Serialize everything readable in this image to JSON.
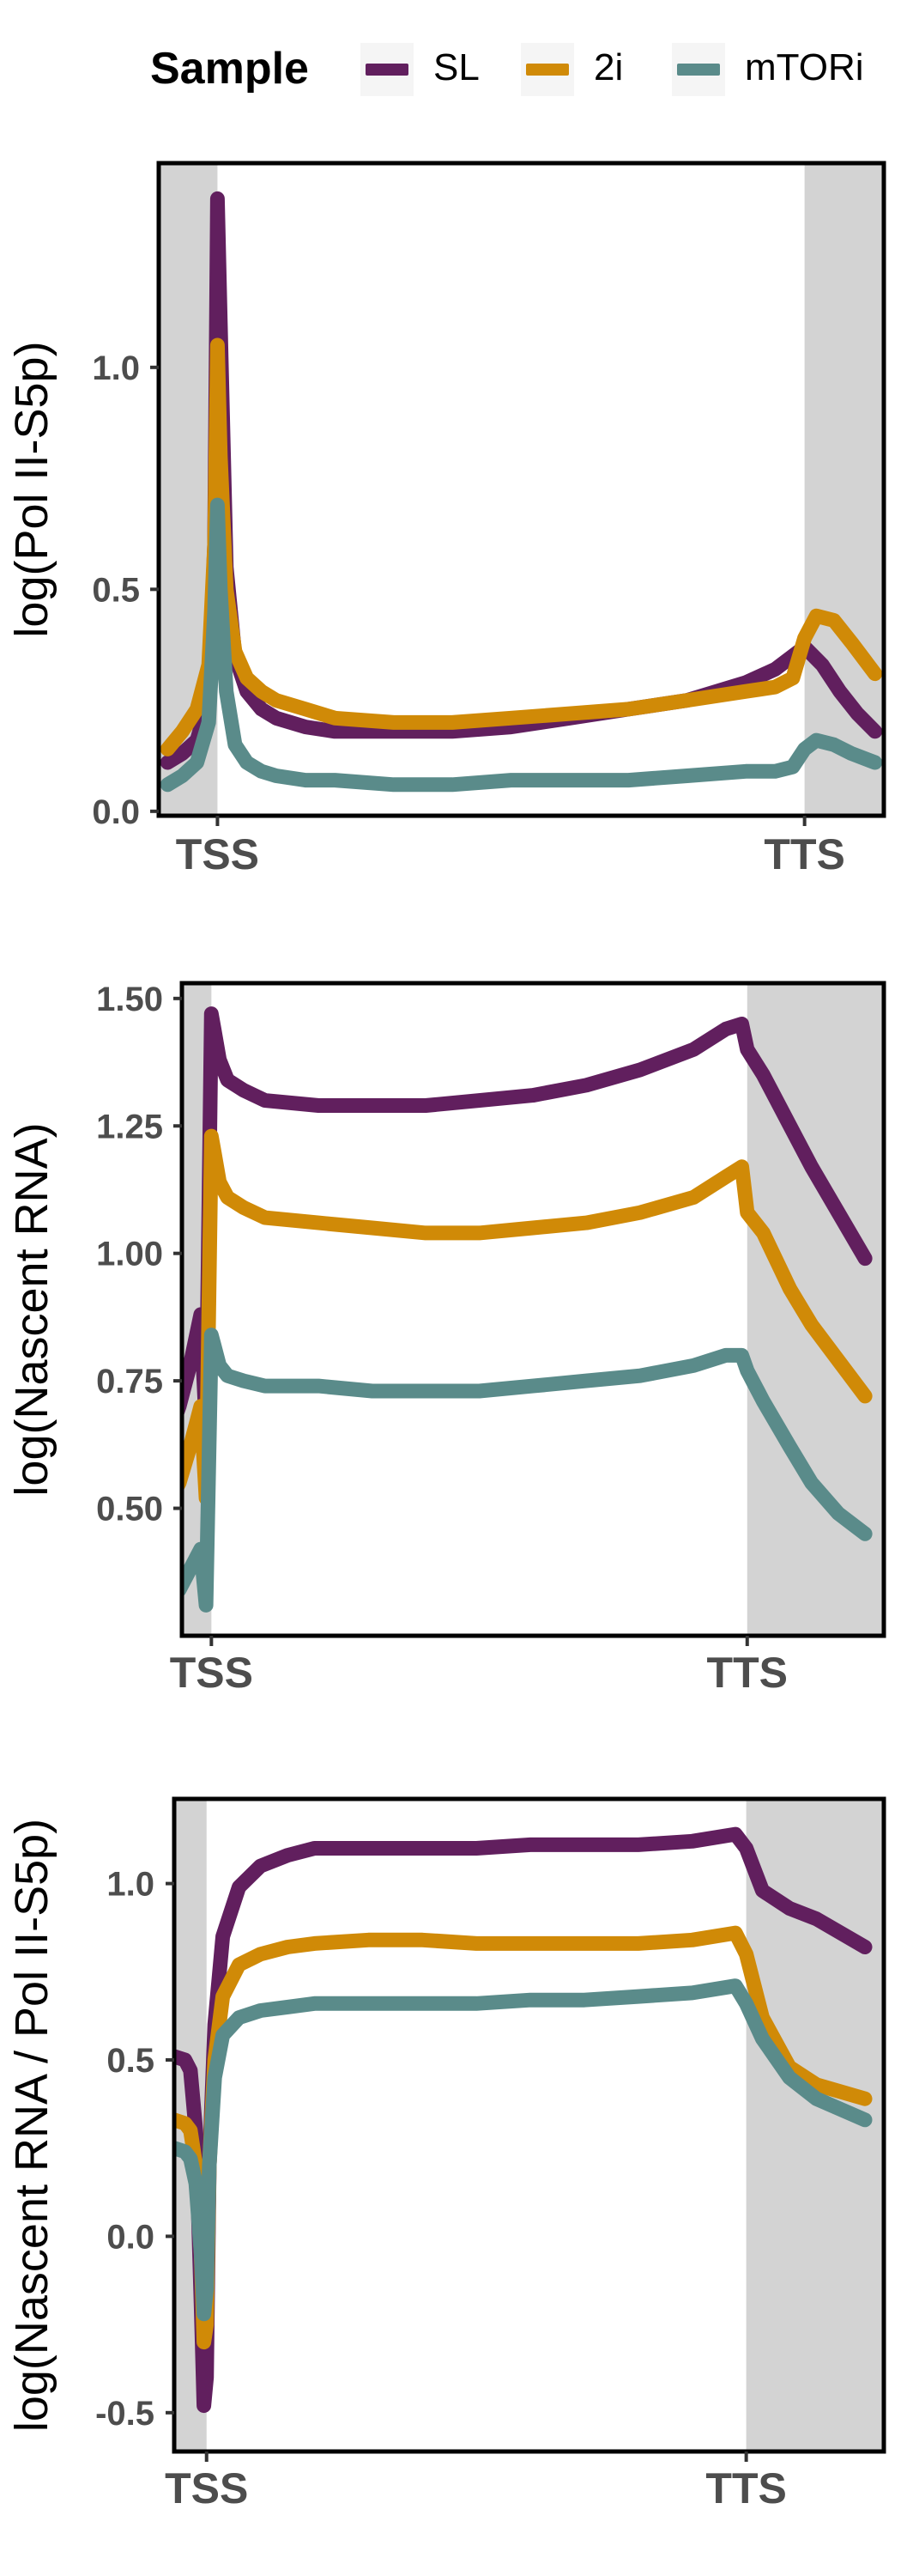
{
  "legend": {
    "title": "Sample",
    "items": [
      {
        "label": "SL",
        "color": "#611f5e"
      },
      {
        "label": "2i",
        "color": "#d08a07"
      },
      {
        "label": "mTORi",
        "color": "#5a8b8a"
      }
    ]
  },
  "chart_data": [
    {
      "type": "line",
      "ylabel": "log(Pol II-S5p)",
      "ylim": [
        -0.01,
        1.46
      ],
      "yticks": [
        "0.0",
        "0.5",
        "1.0"
      ],
      "yticks_values": [
        0.0,
        0.5,
        1.0
      ],
      "xticks": [
        "TSS",
        "TTS"
      ],
      "xlim": [
        -1,
        11.35
      ],
      "tss": 0,
      "tts": 10,
      "shaded_regions": [
        [
          -1,
          0
        ],
        [
          10,
          11.35
        ]
      ],
      "series": [
        {
          "name": "SL",
          "color": "#611f5e",
          "x": [
            -0.85,
            -0.6,
            -0.35,
            -0.15,
            -0.05,
            0.0,
            0.05,
            0.15,
            0.3,
            0.5,
            0.75,
            1.0,
            1.5,
            2,
            3,
            4,
            5,
            6,
            7,
            8,
            9,
            9.5,
            9.8,
            10,
            10.3,
            10.6,
            10.9,
            11.2
          ],
          "y": [
            0.11,
            0.13,
            0.16,
            0.25,
            0.6,
            1.38,
            1.1,
            0.55,
            0.35,
            0.27,
            0.23,
            0.21,
            0.19,
            0.18,
            0.18,
            0.18,
            0.19,
            0.21,
            0.23,
            0.25,
            0.29,
            0.32,
            0.35,
            0.37,
            0.33,
            0.27,
            0.22,
            0.18
          ]
        },
        {
          "name": "2i",
          "color": "#d08a07",
          "x": [
            -0.85,
            -0.6,
            -0.35,
            -0.15,
            -0.05,
            0.0,
            0.05,
            0.15,
            0.3,
            0.5,
            0.75,
            1.0,
            1.5,
            2,
            3,
            4,
            5,
            6,
            7,
            8,
            9,
            9.5,
            9.8,
            10,
            10.2,
            10.5,
            10.8,
            11.2
          ],
          "y": [
            0.14,
            0.18,
            0.23,
            0.33,
            0.6,
            1.05,
            0.8,
            0.5,
            0.36,
            0.3,
            0.27,
            0.25,
            0.23,
            0.21,
            0.2,
            0.2,
            0.21,
            0.22,
            0.23,
            0.25,
            0.27,
            0.28,
            0.3,
            0.39,
            0.44,
            0.43,
            0.38,
            0.31
          ]
        },
        {
          "name": "mTORi",
          "color": "#5a8b8a",
          "x": [
            -0.85,
            -0.6,
            -0.35,
            -0.15,
            -0.05,
            0.0,
            0.05,
            0.15,
            0.3,
            0.5,
            0.75,
            1.0,
            1.5,
            2,
            3,
            4,
            5,
            6,
            7,
            8,
            9,
            9.5,
            9.8,
            10,
            10.2,
            10.5,
            10.8,
            11.2
          ],
          "y": [
            0.06,
            0.08,
            0.11,
            0.2,
            0.45,
            0.69,
            0.5,
            0.27,
            0.15,
            0.11,
            0.09,
            0.08,
            0.07,
            0.07,
            0.06,
            0.06,
            0.07,
            0.07,
            0.07,
            0.08,
            0.09,
            0.09,
            0.1,
            0.14,
            0.16,
            0.15,
            0.13,
            0.11
          ]
        }
      ]
    },
    {
      "type": "line",
      "ylabel": "log(Nascent RNA)",
      "ylim": [
        0.25,
        1.53
      ],
      "yticks": [
        "0.50",
        "0.75",
        "1.00",
        "1.25",
        "1.50"
      ],
      "yticks_values": [
        0.5,
        0.75,
        1.0,
        1.25,
        1.5
      ],
      "xticks": [
        "TSS",
        "TTS"
      ],
      "xlim": [
        -0.55,
        12.55
      ],
      "tss": 0,
      "tts": 10,
      "shaded_regions": [
        [
          -0.55,
          0
        ],
        [
          10,
          12.55
        ]
      ],
      "series": [
        {
          "name": "SL",
          "color": "#611f5e",
          "x": [
            -1.0,
            -0.8,
            -0.6,
            -0.4,
            -0.2,
            -0.1,
            0.0,
            0.05,
            0.15,
            0.3,
            0.6,
            1,
            2,
            3,
            4,
            5,
            6,
            7,
            8,
            9,
            9.6,
            9.9,
            10,
            10.3,
            10.8,
            11.2,
            11.7,
            12.2
          ],
          "y": [
            0.62,
            0.64,
            0.7,
            0.78,
            0.88,
            0.66,
            1.47,
            1.44,
            1.38,
            1.34,
            1.32,
            1.3,
            1.29,
            1.29,
            1.29,
            1.3,
            1.31,
            1.33,
            1.36,
            1.4,
            1.44,
            1.45,
            1.4,
            1.35,
            1.25,
            1.17,
            1.08,
            0.99
          ]
        },
        {
          "name": "2i",
          "color": "#d08a07",
          "x": [
            -1.0,
            -0.8,
            -0.6,
            -0.4,
            -0.2,
            -0.1,
            0.0,
            0.05,
            0.15,
            0.3,
            0.6,
            1,
            2,
            3,
            4,
            5,
            6,
            7,
            8,
            9,
            9.6,
            9.9,
            10,
            10.3,
            10.8,
            11.2,
            11.7,
            12.2
          ],
          "y": [
            0.49,
            0.51,
            0.55,
            0.62,
            0.7,
            0.52,
            1.23,
            1.2,
            1.14,
            1.11,
            1.09,
            1.07,
            1.06,
            1.05,
            1.04,
            1.04,
            1.05,
            1.06,
            1.08,
            1.11,
            1.15,
            1.17,
            1.08,
            1.04,
            0.93,
            0.86,
            0.79,
            0.72
          ]
        },
        {
          "name": "mTORi",
          "color": "#5a8b8a",
          "x": [
            -1.0,
            -0.8,
            -0.6,
            -0.4,
            -0.2,
            -0.1,
            0.0,
            0.05,
            0.15,
            0.3,
            0.6,
            1,
            2,
            3,
            4,
            5,
            6,
            7,
            8,
            9,
            9.6,
            9.9,
            10,
            10.3,
            10.8,
            11.2,
            11.7,
            12.2
          ],
          "y": [
            0.31,
            0.32,
            0.34,
            0.38,
            0.42,
            0.31,
            0.84,
            0.82,
            0.78,
            0.76,
            0.75,
            0.74,
            0.74,
            0.73,
            0.73,
            0.73,
            0.74,
            0.75,
            0.76,
            0.78,
            0.8,
            0.8,
            0.77,
            0.71,
            0.62,
            0.55,
            0.49,
            0.45
          ]
        }
      ]
    },
    {
      "type": "line",
      "ylabel": "log(Nascent RNA / Pol II-S5p)",
      "ylim": [
        -0.61,
        1.24
      ],
      "yticks": [
        "-0.5",
        "0.0",
        "0.5",
        "1.0"
      ],
      "yticks_values": [
        -0.5,
        0.0,
        0.5,
        1.0
      ],
      "xticks": [
        "TSS",
        "TTS"
      ],
      "xlim": [
        -0.6,
        12.55
      ],
      "tss": 0,
      "tts": 10,
      "shaded_regions": [
        [
          -0.6,
          0
        ],
        [
          10,
          12.55
        ]
      ],
      "series": [
        {
          "name": "SL",
          "color": "#611f5e",
          "x": [
            -1.0,
            -0.8,
            -0.6,
            -0.4,
            -0.3,
            -0.2,
            -0.1,
            -0.05,
            0.0,
            0.05,
            0.15,
            0.3,
            0.6,
            1,
            1.5,
            2,
            3,
            4,
            5,
            6,
            7,
            8,
            9,
            9.8,
            10,
            10.3,
            10.8,
            11.3,
            12.2
          ],
          "y": [
            0.51,
            0.52,
            0.51,
            0.5,
            0.47,
            0.3,
            -0.2,
            -0.48,
            -0.4,
            0.2,
            0.6,
            0.85,
            0.99,
            1.05,
            1.08,
            1.1,
            1.1,
            1.1,
            1.1,
            1.11,
            1.11,
            1.11,
            1.12,
            1.14,
            1.1,
            0.98,
            0.93,
            0.9,
            0.82
          ]
        },
        {
          "name": "2i",
          "color": "#d08a07",
          "x": [
            -1.0,
            -0.8,
            -0.6,
            -0.4,
            -0.3,
            -0.2,
            -0.1,
            -0.05,
            0.0,
            0.05,
            0.15,
            0.3,
            0.6,
            1,
            1.5,
            2,
            3,
            4,
            5,
            6,
            7,
            8,
            9,
            9.8,
            10,
            10.3,
            10.8,
            11.3,
            12.2
          ],
          "y": [
            0.33,
            0.34,
            0.33,
            0.32,
            0.3,
            0.2,
            -0.05,
            -0.3,
            -0.25,
            0.2,
            0.5,
            0.68,
            0.77,
            0.8,
            0.82,
            0.83,
            0.84,
            0.84,
            0.83,
            0.83,
            0.83,
            0.83,
            0.84,
            0.86,
            0.8,
            0.62,
            0.48,
            0.43,
            0.39
          ]
        },
        {
          "name": "mTORi",
          "color": "#5a8b8a",
          "x": [
            -1.0,
            -0.8,
            -0.6,
            -0.4,
            -0.3,
            -0.2,
            -0.1,
            -0.05,
            0.0,
            0.05,
            0.15,
            0.3,
            0.6,
            1,
            1.5,
            2,
            3,
            4,
            5,
            6,
            7,
            8,
            9,
            9.8,
            10,
            10.3,
            10.8,
            11.3,
            12.2
          ],
          "y": [
            0.25,
            0.26,
            0.25,
            0.24,
            0.22,
            0.15,
            -0.05,
            -0.22,
            -0.15,
            0.2,
            0.45,
            0.57,
            0.62,
            0.64,
            0.65,
            0.66,
            0.66,
            0.66,
            0.66,
            0.67,
            0.67,
            0.68,
            0.69,
            0.71,
            0.66,
            0.56,
            0.45,
            0.39,
            0.33
          ]
        }
      ]
    }
  ]
}
